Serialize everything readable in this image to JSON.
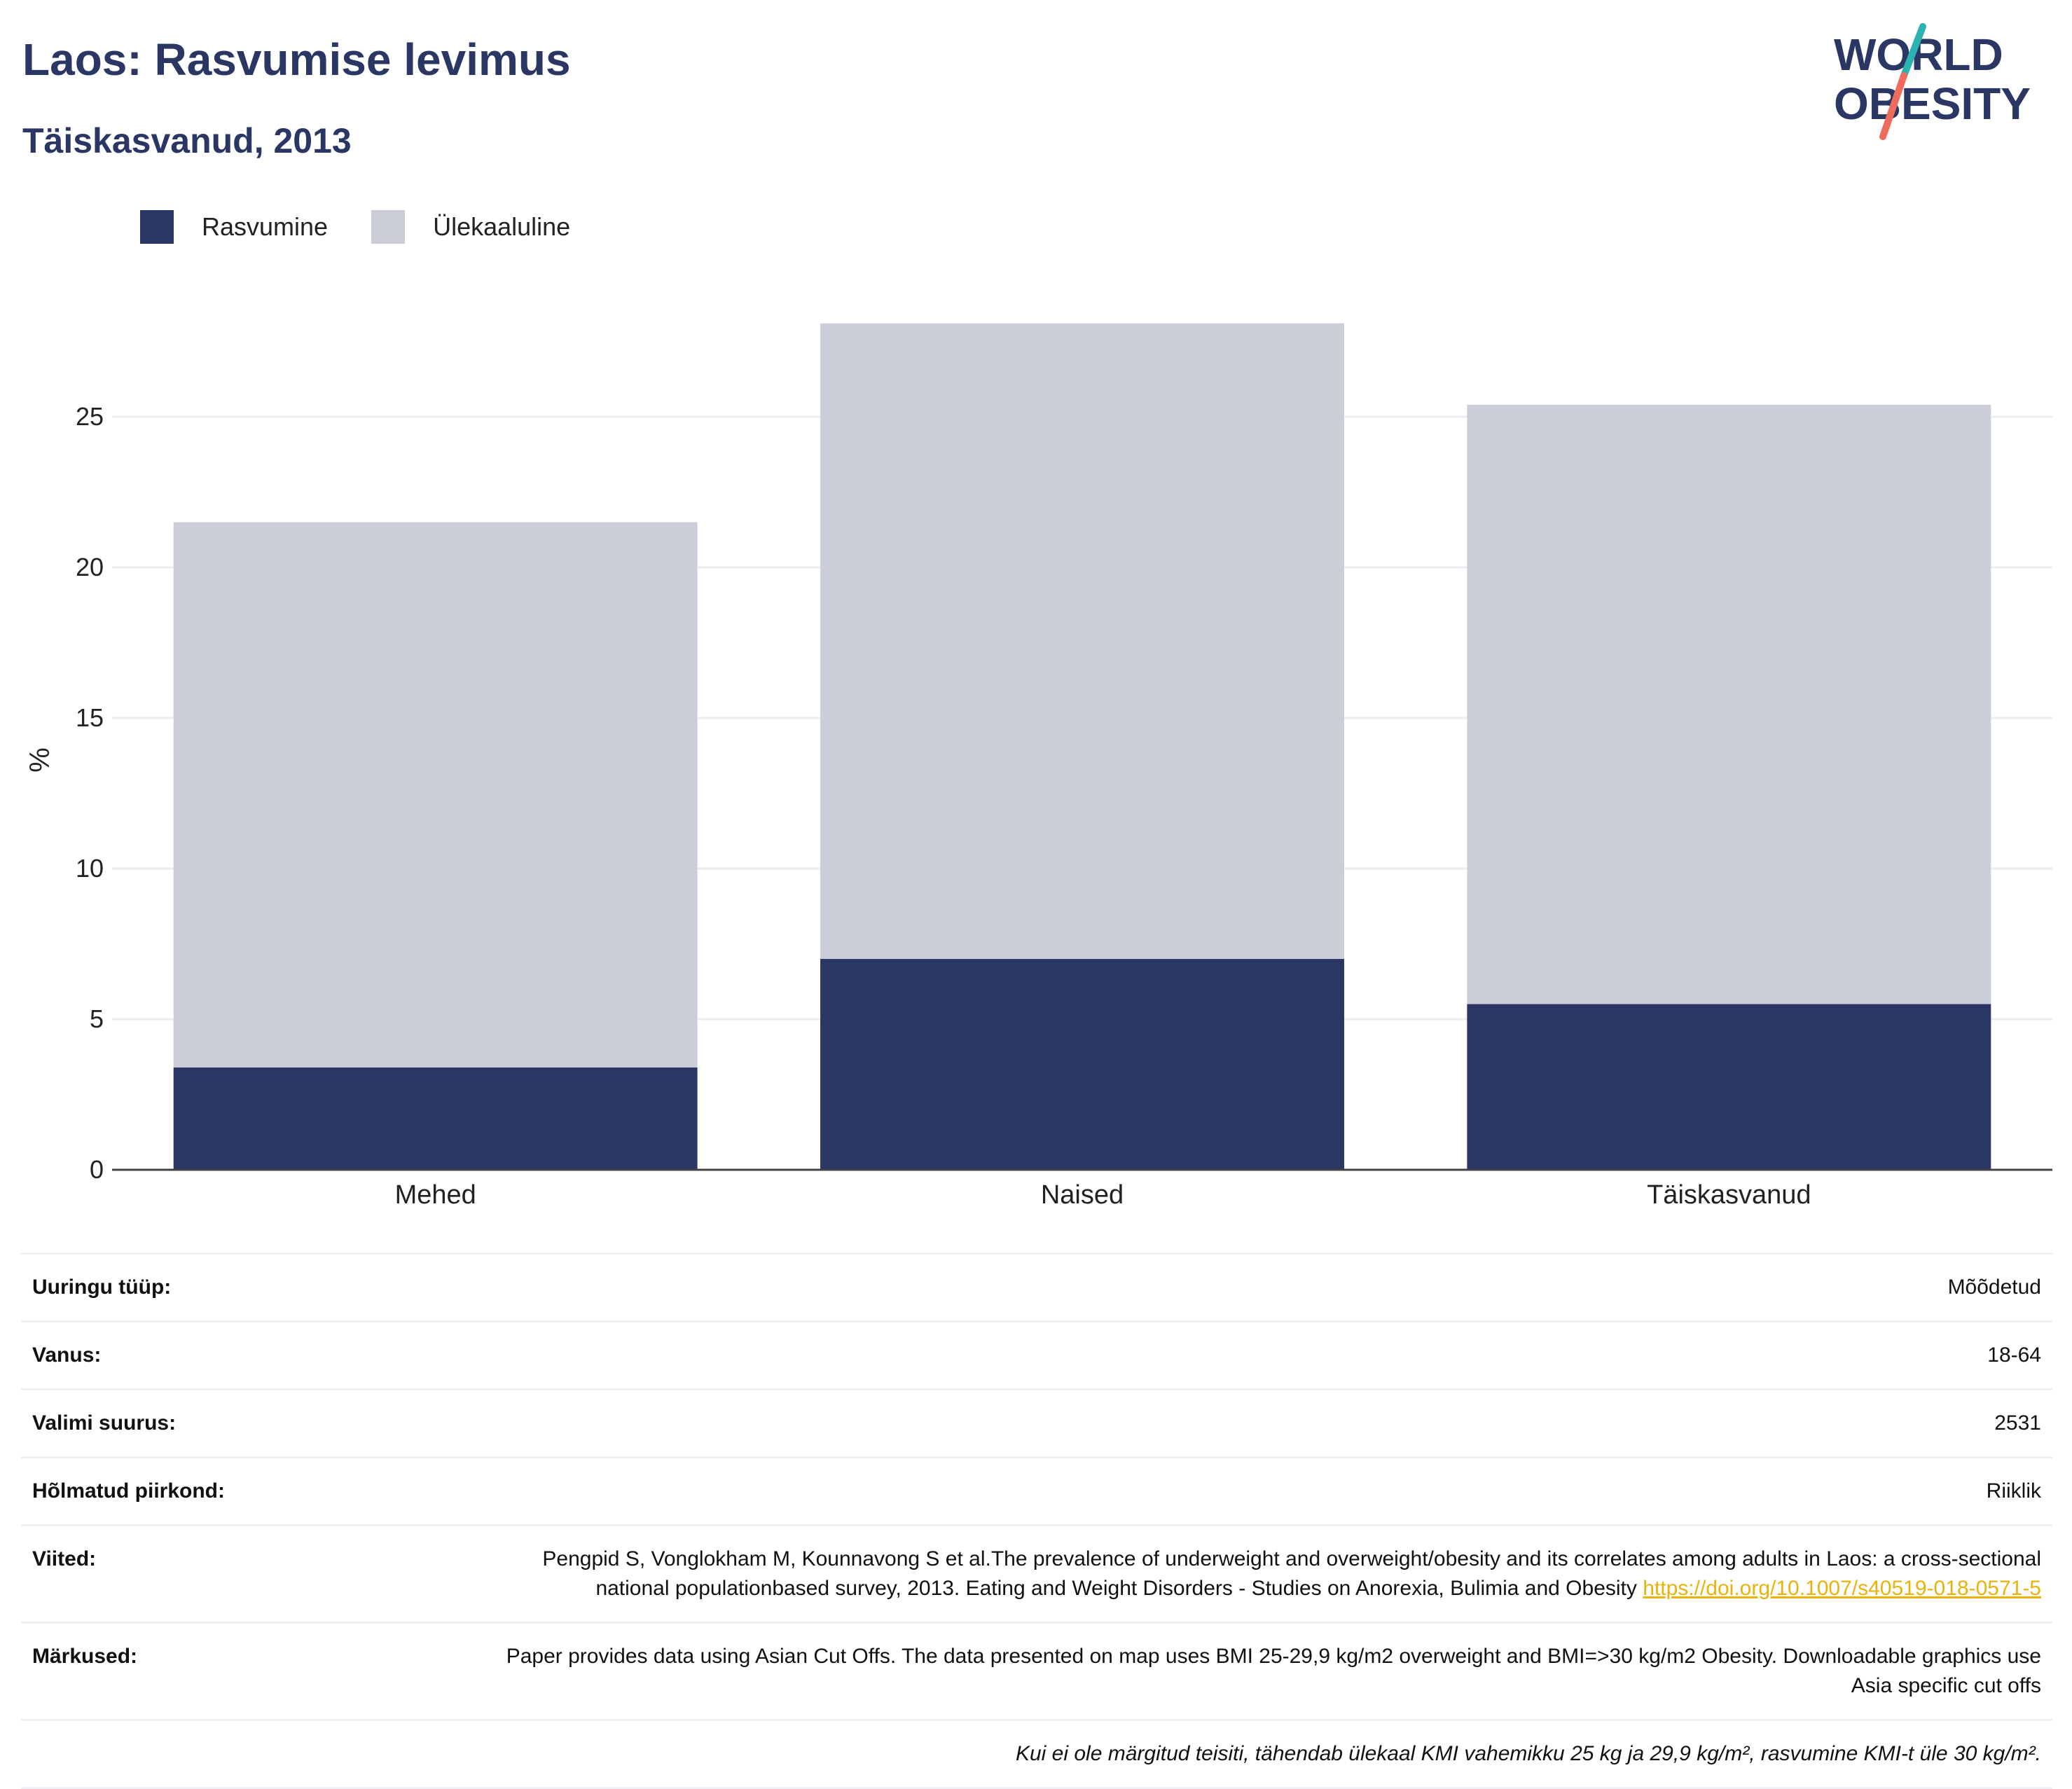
{
  "header": {
    "title": "Laos: Rasvumise levimus",
    "subtitle": "Täiskasvanud, 2013"
  },
  "logo": {
    "line1": "WORLD",
    "line2": "OBESITY"
  },
  "legend": {
    "items": [
      {
        "label": "Rasvumine",
        "color": "#2a3663"
      },
      {
        "label": "Ülekaaluline",
        "color": "#cbcdd9"
      }
    ]
  },
  "chart_data": {
    "type": "bar",
    "stacked": true,
    "categories": [
      "Mehed",
      "Naised",
      "Täiskasvanud"
    ],
    "series": [
      {
        "name": "Rasvumine",
        "color": "#2a3663",
        "values": [
          3.4,
          7.0,
          5.5
        ]
      },
      {
        "name": "Ülekaaluline",
        "color": "#cbcdd9",
        "values": [
          18.1,
          21.1,
          19.9
        ]
      }
    ],
    "ylabel": "%",
    "yticks": [
      0,
      5,
      10,
      15,
      20,
      25
    ],
    "ylim": [
      0,
      30
    ],
    "grid": true,
    "legend_position": "top-left"
  },
  "info": {
    "rows": [
      {
        "key": "Uuringu tüüp:",
        "value": "Mõõdetud"
      },
      {
        "key": "Vanus:",
        "value": "18-64"
      },
      {
        "key": "Valimi suurus:",
        "value": "2531"
      },
      {
        "key": "Hõlmatud piirkond:",
        "value": "Riiklik"
      }
    ],
    "references": {
      "key": "Viited:",
      "text": "Pengpid S, Vonglokham M, Kounnavong S et al.The prevalence of underweight and overweight/obesity and its correlates among adults in Laos: a cross-sectional national populationbased survey, 2013. Eating and Weight Disorders - Studies on Anorexia, Bulimia and Obesity",
      "link": "https://doi.org/10.1007/s40519-018-0571-5"
    },
    "remarks": {
      "key": "Märkused:",
      "text": "Paper provides data using Asian Cut Offs. The data presented on map uses BMI 25-29,9 kg/m2 overweight and BMI=>30 kg/m2 Obesity. Downloadable graphics use Asia specific cut offs"
    },
    "footnote": "Kui ei ole märgitud teisiti, tähendab ülekaal KMI vahemikku 25 kg ja 29,9 kg/m², rasvumine KMI-t üle 30 kg/m²."
  }
}
